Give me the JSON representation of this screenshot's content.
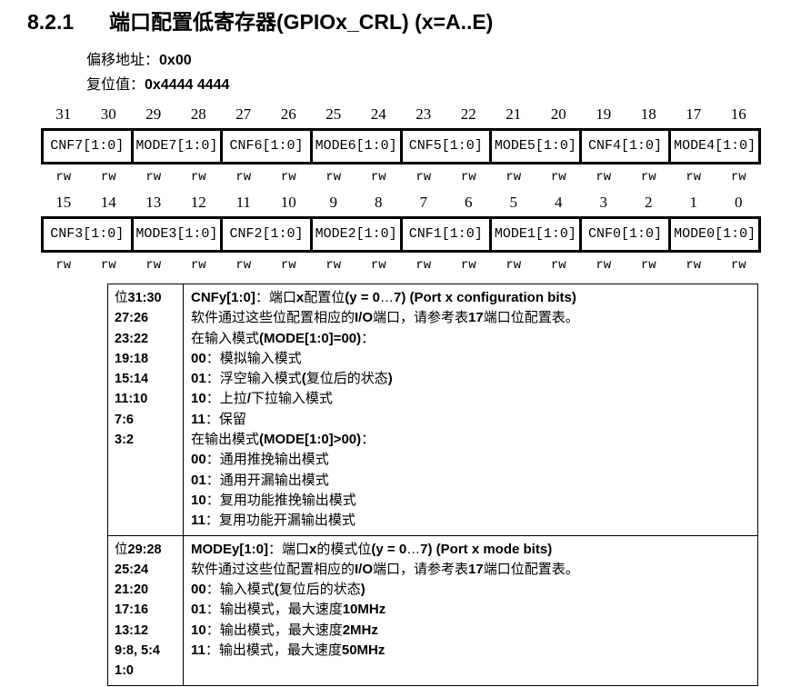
{
  "header": {
    "section_number": "8.2.1",
    "title": "端口配置低寄存器(GPIOx_CRL) (x=A..E)"
  },
  "meta": {
    "offset_label": "偏移地址：",
    "offset_value": "0x00",
    "reset_label": "复位值：",
    "reset_value": "0x4444 4444"
  },
  "register_diagram": {
    "rows": [
      {
        "bits": [
          "31",
          "30",
          "29",
          "28",
          "27",
          "26",
          "25",
          "24",
          "23",
          "22",
          "21",
          "20",
          "19",
          "18",
          "17",
          "16"
        ],
        "fields": [
          "CNF7[1:0]",
          "MODE7[1:0]",
          "CNF6[1:0]",
          "MODE6[1:0]",
          "CNF5[1:0]",
          "MODE5[1:0]",
          "CNF4[1:0]",
          "MODE4[1:0]"
        ],
        "access": [
          "rw",
          "rw",
          "rw",
          "rw",
          "rw",
          "rw",
          "rw",
          "rw",
          "rw",
          "rw",
          "rw",
          "rw",
          "rw",
          "rw",
          "rw",
          "rw"
        ]
      },
      {
        "bits": [
          "15",
          "14",
          "13",
          "12",
          "11",
          "10",
          "9",
          "8",
          "7",
          "6",
          "5",
          "4",
          "3",
          "2",
          "1",
          "0"
        ],
        "fields": [
          "CNF3[1:0]",
          "MODE3[1:0]",
          "CNF2[1:0]",
          "MODE2[1:0]",
          "CNF1[1:0]",
          "MODE1[1:0]",
          "CNF0[1:0]",
          "MODE0[1:0]"
        ],
        "access": [
          "rw",
          "rw",
          "rw",
          "rw",
          "rw",
          "rw",
          "rw",
          "rw",
          "rw",
          "rw",
          "rw",
          "rw",
          "rw",
          "rw",
          "rw",
          "rw"
        ]
      }
    ]
  },
  "description_table": {
    "rows": [
      {
        "bit_lines": [
          "位31:30",
          "27:26",
          "23:22",
          "19:18",
          "15:14",
          "11:10",
          "7:6",
          "3:2"
        ],
        "lines": [
          "CNFy[1:0]：端口x配置位(y = 0…7) (Port x configuration bits)",
          "软件通过这些位配置相应的I/O端口，请参考表17端口位配置表。",
          "在输入模式(MODE[1:0]=00)：",
          "00：模拟输入模式",
          "01：浮空输入模式(复位后的状态)",
          "10：上拉/下拉输入模式",
          "11：保留",
          "在输出模式(MODE[1:0]>00)：",
          "00：通用推挽输出模式",
          "01：通用开漏输出模式",
          "10：复用功能推挽输出模式",
          "11：复用功能开漏输出模式"
        ]
      },
      {
        "bit_lines": [
          "位29:28",
          "25:24",
          "21:20",
          "17:16",
          "13:12",
          "9:8, 5:4",
          "1:0"
        ],
        "lines": [
          "MODEy[1:0]：端口x的模式位(y = 0…7) (Port x mode bits)",
          "软件通过这些位配置相应的I/O端口，请参考表17端口位配置表。",
          "00：输入模式(复位后的状态)",
          "01：输出模式，最大速度10MHz",
          "10：输出模式，最大速度2MHz",
          "11：输出模式，最大速度50MHz"
        ]
      }
    ]
  }
}
